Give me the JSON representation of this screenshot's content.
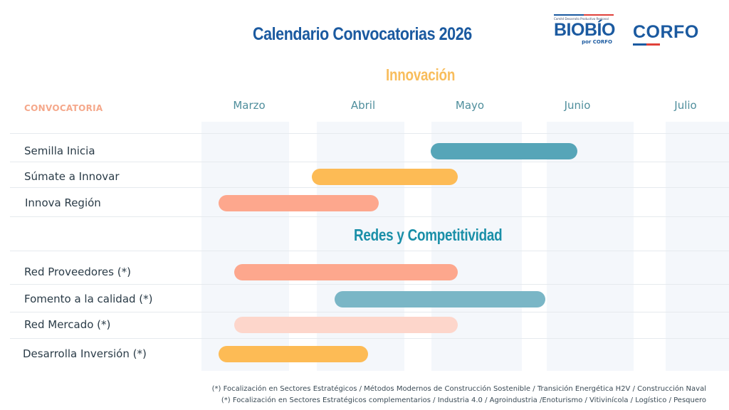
{
  "header": {
    "title": "Calendario Convocatorias  2026",
    "logos": {
      "biobio": {
        "tagline": "Comité Desarrollo Productivo Regional",
        "name": "BIOBÍO",
        "sub": "por CORFO"
      },
      "corfo": {
        "name": "CORFO"
      }
    }
  },
  "colors": {
    "title_blue": "#1b5aa0",
    "section_innovacion": "#f8bd5c",
    "section_redes": "#1a8fa8",
    "header_salmon": "#f5a88b",
    "flag_blue": "#1b5aa0",
    "flag_red": "#e0413a"
  },
  "table": {
    "column_header": "CONVOCATORIA"
  },
  "chart_data": {
    "type": "gantt",
    "title": "Calendario Convocatorias  2026",
    "x_unit": "months since 1 March 2026",
    "xlim": [
      0,
      5
    ],
    "months": [
      "Marzo",
      "Abril",
      "Mayo",
      "Junio",
      "Julio"
    ],
    "sections": [
      {
        "name": "Innovación",
        "rows": [
          {
            "label": "Semilla Inicia",
            "start": 2.18,
            "end": 3.53,
            "color": "#56a5b8"
          },
          {
            "label": "Súmate a Innovar",
            "start": 1.08,
            "end": 2.43,
            "color": "#fdbb55"
          },
          {
            "label": "Innova Región",
            "start": 0.22,
            "end": 1.7,
            "color": "#fda78d"
          }
        ]
      },
      {
        "name": "Redes y Competitividad",
        "rows": [
          {
            "label": "Red Proveedores (*)",
            "start": 0.36,
            "end": 2.43,
            "color": "#fda78d"
          },
          {
            "label": "Fomento a la calidad (*)",
            "start": 1.29,
            "end": 3.24,
            "color": "#7ab6c6"
          },
          {
            "label": "Red Mercado (*)",
            "start": 0.36,
            "end": 2.43,
            "color": "#fdd6cb"
          },
          {
            "label": "Desarrolla Inversión (*)",
            "start": 0.22,
            "end": 1.6,
            "color": "#fdbb55"
          }
        ]
      }
    ]
  },
  "footnotes": [
    "(*) Focalización en Sectores Estratégicos / Métodos Modernos de Construcción Sostenible / Transición Energética H2V / Construcción Naval",
    "(*) Focalización en Sectores Estratégicos complementarios / Industria 4.0 / Agroindustria /Enoturismo / Vitivinícola / Logístico / Pesquero"
  ]
}
